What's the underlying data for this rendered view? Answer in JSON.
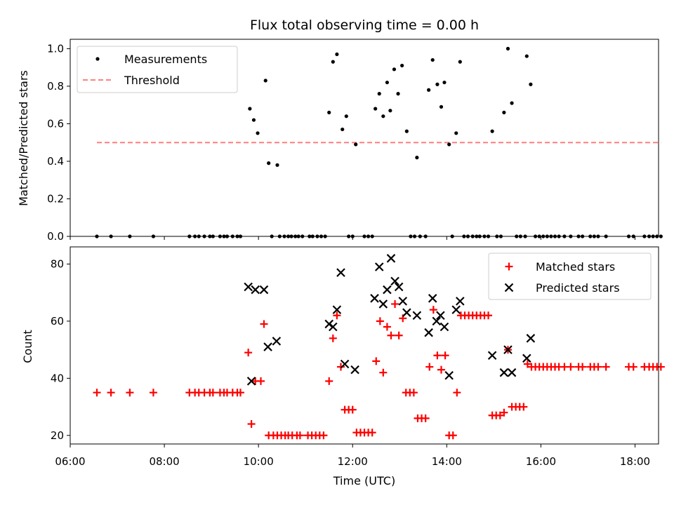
{
  "chart_data": [
    {
      "type": "scatter",
      "title": "Flux total observing time = 0.00 h",
      "xlabel": "",
      "ylabel": "Matched/Predicted stars",
      "xlim": [
        "06:00",
        "18:30"
      ],
      "ylim": [
        0,
        1.05
      ],
      "yticks": [
        0.0,
        0.2,
        0.4,
        0.6,
        0.8,
        1.0
      ],
      "ytick_labels": [
        "0.0",
        "0.2",
        "0.4",
        "0.6",
        "0.8",
        "1.0"
      ],
      "legend": "top-left",
      "colors": {
        "measurements": "#000000",
        "threshold": "#ff7f7f"
      },
      "series": [
        {
          "name": "Measurements",
          "points": [
            [
              "06:34",
              0.0
            ],
            [
              "06:52",
              0.0
            ],
            [
              "07:16",
              0.0
            ],
            [
              "07:46",
              0.0
            ],
            [
              "08:32",
              0.0
            ],
            [
              "08:39",
              0.0
            ],
            [
              "08:44",
              0.0
            ],
            [
              "08:51",
              0.0
            ],
            [
              "08:58",
              0.0
            ],
            [
              "09:02",
              0.0
            ],
            [
              "09:11",
              0.0
            ],
            [
              "09:16",
              0.0
            ],
            [
              "09:20",
              0.0
            ],
            [
              "09:27",
              0.0
            ],
            [
              "09:33",
              0.0
            ],
            [
              "09:37",
              0.0
            ],
            [
              "09:49",
              0.68
            ],
            [
              "09:54",
              0.62
            ],
            [
              "09:59",
              0.55
            ],
            [
              "10:09",
              0.83
            ],
            [
              "10:13",
              0.39
            ],
            [
              "10:24",
              0.38
            ],
            [
              "10:17",
              0.0
            ],
            [
              "10:27",
              0.0
            ],
            [
              "10:33",
              0.0
            ],
            [
              "10:38",
              0.0
            ],
            [
              "10:42",
              0.0
            ],
            [
              "10:47",
              0.0
            ],
            [
              "10:51",
              0.0
            ],
            [
              "10:56",
              0.0
            ],
            [
              "11:05",
              0.0
            ],
            [
              "11:09",
              0.0
            ],
            [
              "11:15",
              0.0
            ],
            [
              "11:20",
              0.0
            ],
            [
              "11:25",
              0.0
            ],
            [
              "11:30",
              0.66
            ],
            [
              "11:35",
              0.93
            ],
            [
              "11:40",
              0.97
            ],
            [
              "11:47",
              0.57
            ],
            [
              "11:52",
              0.64
            ],
            [
              "11:55",
              0.0
            ],
            [
              "12:00",
              0.0
            ],
            [
              "12:04",
              0.49
            ],
            [
              "12:15",
              0.0
            ],
            [
              "12:20",
              0.0
            ],
            [
              "12:25",
              0.0
            ],
            [
              "12:29",
              0.68
            ],
            [
              "12:34",
              0.76
            ],
            [
              "12:39",
              0.64
            ],
            [
              "12:44",
              0.82
            ],
            [
              "12:48",
              0.67
            ],
            [
              "12:53",
              0.89
            ],
            [
              "12:58",
              0.76
            ],
            [
              "13:03",
              0.91
            ],
            [
              "13:09",
              0.56
            ],
            [
              "13:14",
              0.0
            ],
            [
              "13:19",
              0.0
            ],
            [
              "13:22",
              0.42
            ],
            [
              "13:26",
              0.0
            ],
            [
              "13:33",
              0.0
            ],
            [
              "13:37",
              0.78
            ],
            [
              "13:42",
              0.94
            ],
            [
              "13:48",
              0.81
            ],
            [
              "13:53",
              0.69
            ],
            [
              "13:57",
              0.82
            ],
            [
              "14:03",
              0.49
            ],
            [
              "14:07",
              0.0
            ],
            [
              "14:12",
              0.55
            ],
            [
              "14:17",
              0.93
            ],
            [
              "14:22",
              0.0
            ],
            [
              "14:27",
              0.0
            ],
            [
              "14:33",
              0.0
            ],
            [
              "14:38",
              0.0
            ],
            [
              "14:42",
              0.0
            ],
            [
              "14:48",
              0.0
            ],
            [
              "14:53",
              0.0
            ],
            [
              "14:58",
              0.56
            ],
            [
              "15:04",
              0.0
            ],
            [
              "15:09",
              0.0
            ],
            [
              "15:13",
              0.66
            ],
            [
              "15:18",
              1.0
            ],
            [
              "15:23",
              0.71
            ],
            [
              "15:29",
              0.0
            ],
            [
              "15:34",
              0.0
            ],
            [
              "15:40",
              0.0
            ],
            [
              "15:42",
              0.96
            ],
            [
              "15:47",
              0.81
            ],
            [
              "15:53",
              0.0
            ],
            [
              "15:58",
              0.0
            ],
            [
              "16:03",
              0.0
            ],
            [
              "16:08",
              0.0
            ],
            [
              "16:13",
              0.0
            ],
            [
              "16:18",
              0.0
            ],
            [
              "16:23",
              0.0
            ],
            [
              "16:30",
              0.0
            ],
            [
              "16:38",
              0.0
            ],
            [
              "16:48",
              0.0
            ],
            [
              "16:53",
              0.0
            ],
            [
              "17:03",
              0.0
            ],
            [
              "17:08",
              0.0
            ],
            [
              "17:13",
              0.0
            ],
            [
              "17:23",
              0.0
            ],
            [
              "17:52",
              0.0
            ],
            [
              "17:58",
              0.0
            ],
            [
              "18:12",
              0.0
            ],
            [
              "18:18",
              0.0
            ],
            [
              "18:23",
              0.0
            ],
            [
              "18:28",
              0.0
            ],
            [
              "18:33",
              0.0
            ]
          ]
        },
        {
          "name": "Threshold",
          "points": [
            [
              "06:34",
              0.5
            ],
            [
              "18:33",
              0.5
            ]
          ]
        }
      ]
    },
    {
      "type": "scatter",
      "title": "",
      "xlabel": "Time (UTC)",
      "ylabel": "Count",
      "xlim": [
        "06:00",
        "18:30"
      ],
      "ylim": [
        17,
        86
      ],
      "yticks": [
        20,
        40,
        60,
        80
      ],
      "ytick_labels": [
        "20",
        "40",
        "60",
        "80"
      ],
      "xticks": [
        "06:00",
        "08:00",
        "10:00",
        "12:00",
        "14:00",
        "16:00",
        "18:00"
      ],
      "legend": "top-right",
      "colors": {
        "matched": "#ff0000",
        "predicted": "#000000"
      },
      "series": [
        {
          "name": "Matched stars",
          "points": [
            [
              "06:34",
              35
            ],
            [
              "06:52",
              35
            ],
            [
              "07:16",
              35
            ],
            [
              "07:46",
              35
            ],
            [
              "08:32",
              35
            ],
            [
              "08:39",
              35
            ],
            [
              "08:44",
              35
            ],
            [
              "08:51",
              35
            ],
            [
              "08:58",
              35
            ],
            [
              "09:02",
              35
            ],
            [
              "09:11",
              35
            ],
            [
              "09:16",
              35
            ],
            [
              "09:20",
              35
            ],
            [
              "09:27",
              35
            ],
            [
              "09:33",
              35
            ],
            [
              "09:37",
              35
            ],
            [
              "09:47",
              49
            ],
            [
              "09:51",
              24
            ],
            [
              "09:56",
              39
            ],
            [
              "10:03",
              39
            ],
            [
              "10:07",
              59
            ],
            [
              "10:13",
              20
            ],
            [
              "10:19",
              20
            ],
            [
              "10:24",
              20
            ],
            [
              "10:29",
              20
            ],
            [
              "10:34",
              20
            ],
            [
              "10:38",
              20
            ],
            [
              "10:43",
              20
            ],
            [
              "10:49",
              20
            ],
            [
              "10:53",
              20
            ],
            [
              "11:03",
              20
            ],
            [
              "11:08",
              20
            ],
            [
              "11:13",
              20
            ],
            [
              "11:18",
              20
            ],
            [
              "11:23",
              20
            ],
            [
              "11:30",
              39
            ],
            [
              "11:35",
              54
            ],
            [
              "11:40",
              62
            ],
            [
              "11:45",
              44
            ],
            [
              "11:50",
              29
            ],
            [
              "11:55",
              29
            ],
            [
              "12:00",
              29
            ],
            [
              "12:05",
              21
            ],
            [
              "12:10",
              21
            ],
            [
              "12:15",
              21
            ],
            [
              "12:20",
              21
            ],
            [
              "12:25",
              21
            ],
            [
              "12:30",
              46
            ],
            [
              "12:35",
              60
            ],
            [
              "12:39",
              42
            ],
            [
              "12:44",
              58
            ],
            [
              "12:49",
              55
            ],
            [
              "12:54",
              66
            ],
            [
              "12:59",
              55
            ],
            [
              "13:04",
              61
            ],
            [
              "13:08",
              35
            ],
            [
              "13:13",
              35
            ],
            [
              "13:18",
              35
            ],
            [
              "13:23",
              26
            ],
            [
              "13:28",
              26
            ],
            [
              "13:33",
              26
            ],
            [
              "13:38",
              44
            ],
            [
              "13:43",
              64
            ],
            [
              "13:48",
              48
            ],
            [
              "13:53",
              43
            ],
            [
              "13:58",
              48
            ],
            [
              "14:03",
              20
            ],
            [
              "14:08",
              20
            ],
            [
              "14:13",
              35
            ],
            [
              "14:18",
              62
            ],
            [
              "14:23",
              62
            ],
            [
              "14:28",
              62
            ],
            [
              "14:33",
              62
            ],
            [
              "14:38",
              62
            ],
            [
              "14:43",
              62
            ],
            [
              "14:48",
              62
            ],
            [
              "14:53",
              62
            ],
            [
              "14:58",
              27
            ],
            [
              "15:03",
              27
            ],
            [
              "15:08",
              27
            ],
            [
              "15:13",
              28
            ],
            [
              "15:18",
              50
            ],
            [
              "15:23",
              30
            ],
            [
              "15:28",
              30
            ],
            [
              "15:33",
              30
            ],
            [
              "15:38",
              30
            ],
            [
              "15:43",
              45
            ],
            [
              "15:48",
              44
            ],
            [
              "15:53",
              44
            ],
            [
              "15:58",
              44
            ],
            [
              "16:03",
              44
            ],
            [
              "16:08",
              44
            ],
            [
              "16:13",
              44
            ],
            [
              "16:18",
              44
            ],
            [
              "16:23",
              44
            ],
            [
              "16:30",
              44
            ],
            [
              "16:38",
              44
            ],
            [
              "16:48",
              44
            ],
            [
              "16:53",
              44
            ],
            [
              "17:03",
              44
            ],
            [
              "17:08",
              44
            ],
            [
              "17:13",
              44
            ],
            [
              "17:23",
              44
            ],
            [
              "17:52",
              44
            ],
            [
              "17:58",
              44
            ],
            [
              "18:12",
              44
            ],
            [
              "18:18",
              44
            ],
            [
              "18:23",
              44
            ],
            [
              "18:28",
              44
            ],
            [
              "18:33",
              44
            ]
          ]
        },
        {
          "name": "Predicted stars",
          "points": [
            [
              "09:47",
              72
            ],
            [
              "09:51",
              39
            ],
            [
              "09:56",
              71
            ],
            [
              "10:07",
              71
            ],
            [
              "10:12",
              51
            ],
            [
              "10:23",
              53
            ],
            [
              "11:30",
              59
            ],
            [
              "11:35",
              58
            ],
            [
              "11:40",
              64
            ],
            [
              "11:45",
              77
            ],
            [
              "11:50",
              45
            ],
            [
              "12:03",
              43
            ],
            [
              "12:28",
              68
            ],
            [
              "12:34",
              79
            ],
            [
              "12:39",
              66
            ],
            [
              "12:44",
              71
            ],
            [
              "12:49",
              82
            ],
            [
              "12:54",
              74
            ],
            [
              "12:59",
              72
            ],
            [
              "13:04",
              67
            ],
            [
              "13:09",
              63
            ],
            [
              "13:22",
              62
            ],
            [
              "13:37",
              56
            ],
            [
              "13:42",
              68
            ],
            [
              "13:47",
              60
            ],
            [
              "13:52",
              62
            ],
            [
              "13:57",
              58
            ],
            [
              "14:03",
              41
            ],
            [
              "14:12",
              64
            ],
            [
              "14:17",
              67
            ],
            [
              "14:58",
              48
            ],
            [
              "15:13",
              42
            ],
            [
              "15:18",
              50
            ],
            [
              "15:23",
              42
            ],
            [
              "15:42",
              47
            ],
            [
              "15:47",
              54
            ]
          ]
        }
      ]
    }
  ]
}
